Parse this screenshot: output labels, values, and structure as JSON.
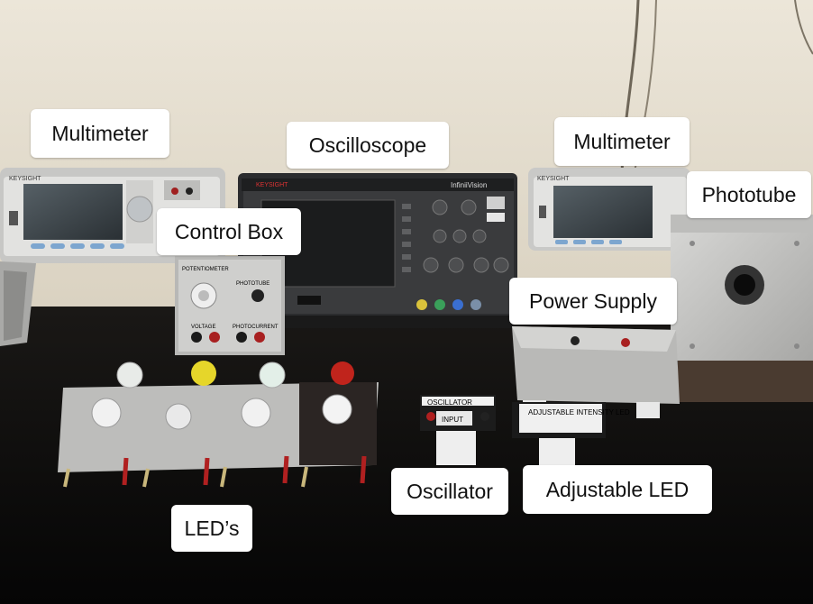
{
  "labels": {
    "multimeter_left": "Multimeter",
    "oscilloscope": "Oscilloscope",
    "multimeter_right": "Multimeter",
    "phototube": "Phototube",
    "control_box": "Control Box",
    "power_supply": "Power Supply",
    "leds": "LED’s",
    "oscillator": "Oscillator",
    "adjustable_led": "Adjustable LED"
  },
  "device_text": {
    "keysight_left": "KEYSIGHT",
    "keysight_scope": "KEYSIGHT",
    "keysight_right": "KEYSIGHT",
    "infinivision": "InfiniiVision",
    "oscillator_top": "OSCILLATOR",
    "oscillator_input": "INPUT",
    "adjustable_intensity": "ADJUSTABLE INTENSITY LED",
    "cb_potentiometer": "POTENTIOMETER",
    "cb_phototube": "PHOTOTUBE",
    "cb_voltage": "VOLTAGE",
    "cb_photocurrent": "PHOTOCURRENT"
  },
  "colors": {
    "wall": "#e9e3d6",
    "table": "#0d0c0b",
    "instrument_body": "#cfcfcf",
    "led_red": "#c0241c",
    "led_yellow": "#e6d62a"
  }
}
